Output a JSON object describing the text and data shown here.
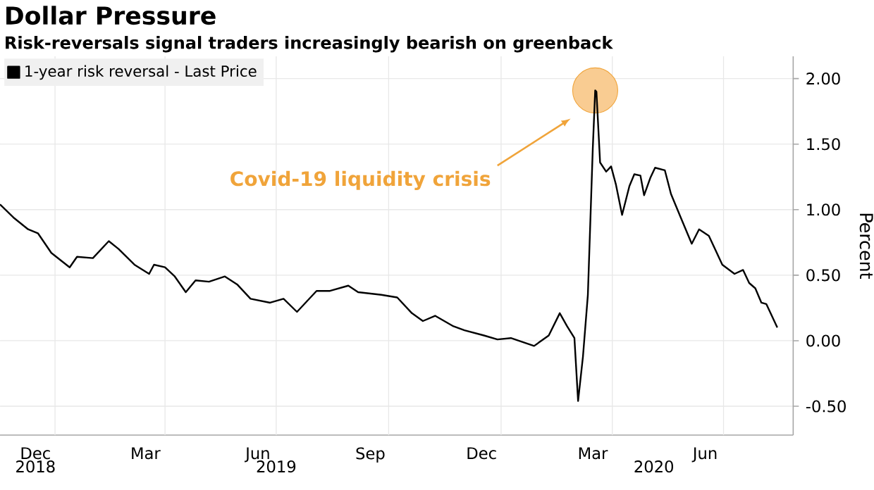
{
  "chart_data": {
    "type": "line",
    "title": "Dollar Pressure",
    "subtitle": "Risk-reversals signal traders increasingly bearish on greenback",
    "ylabel": "Percent",
    "series": [
      {
        "name": "1-year risk reversal - Last Price",
        "color": "#000000",
        "x": [
          "2018-11-17",
          "2018-11-28",
          "2018-12-10",
          "2018-12-18",
          "2018-12-29",
          "2019-01-13",
          "2019-01-19",
          "2019-02-01",
          "2019-02-14",
          "2019-02-22",
          "2019-03-07",
          "2019-03-19",
          "2019-03-23",
          "2019-04-01",
          "2019-04-09",
          "2019-04-18",
          "2019-04-26",
          "2019-05-07",
          "2019-05-20",
          "2019-05-30",
          "2019-06-10",
          "2019-06-26",
          "2019-07-07",
          "2019-07-18",
          "2019-08-03",
          "2019-08-14",
          "2019-08-29",
          "2019-09-06",
          "2019-09-25",
          "2019-10-08",
          "2019-10-20",
          "2019-10-29",
          "2019-11-08",
          "2019-11-23",
          "2019-12-02",
          "2019-12-18",
          "2019-12-29",
          "2020-01-09",
          "2020-01-28",
          "2020-02-09",
          "2020-02-18",
          "2020-02-24",
          "2020-03-01",
          "2020-03-04",
          "2020-03-08",
          "2020-03-12",
          "2020-03-16",
          "2020-03-18",
          "2020-03-19",
          "2020-03-22",
          "2020-03-27",
          "2020-03-31",
          "2020-04-04",
          "2020-04-09",
          "2020-04-15",
          "2020-04-19",
          "2020-04-24",
          "2020-04-27",
          "2020-05-02",
          "2020-05-06",
          "2020-05-14",
          "2020-05-19",
          "2020-05-27",
          "2020-06-05",
          "2020-06-11",
          "2020-06-19",
          "2020-06-30",
          "2020-07-10",
          "2020-07-17",
          "2020-07-22",
          "2020-07-27",
          "2020-08-01",
          "2020-08-05",
          "2020-08-14"
        ],
        "values": [
          1.04,
          0.94,
          0.85,
          0.82,
          0.67,
          0.56,
          0.64,
          0.63,
          0.76,
          0.7,
          0.58,
          0.51,
          0.58,
          0.56,
          0.49,
          0.37,
          0.46,
          0.45,
          0.49,
          0.43,
          0.32,
          0.29,
          0.32,
          0.22,
          0.38,
          0.38,
          0.42,
          0.37,
          0.35,
          0.33,
          0.21,
          0.15,
          0.19,
          0.11,
          0.08,
          0.04,
          0.01,
          0.02,
          -0.04,
          0.04,
          0.21,
          0.11,
          0.02,
          -0.46,
          -0.12,
          0.35,
          1.46,
          1.91,
          1.9,
          1.36,
          1.29,
          1.33,
          1.19,
          0.96,
          1.18,
          1.27,
          1.26,
          1.11,
          1.24,
          1.32,
          1.3,
          1.12,
          0.94,
          0.74,
          0.85,
          0.8,
          0.58,
          0.51,
          0.54,
          0.44,
          0.4,
          0.29,
          0.28,
          0.1
        ]
      }
    ],
    "xlim": [
      "2018-11-17",
      "2020-08-27"
    ],
    "xticks": [
      {
        "value": "2018-12-16",
        "label": "Dec"
      },
      {
        "value": "2019-03-16",
        "label": "Mar"
      },
      {
        "value": "2019-06-16",
        "label": "Jun"
      },
      {
        "value": "2019-09-16",
        "label": "Sep"
      },
      {
        "value": "2019-12-16",
        "label": "Dec"
      },
      {
        "value": "2020-03-16",
        "label": "Mar"
      },
      {
        "value": "2020-06-16",
        "label": "Jun"
      },
      {
        "value": "2019-01-01",
        "label": null
      },
      {
        "value": "2019-04-01",
        "label": null
      },
      {
        "value": "2019-07-01",
        "label": null
      },
      {
        "value": "2019-10-01",
        "label": null
      },
      {
        "value": "2020-01-01",
        "label": null
      },
      {
        "value": "2020-04-01",
        "label": null
      },
      {
        "value": "2020-07-01",
        "label": null
      }
    ],
    "x2lim": [
      "2018-11-17",
      "2020-08-27"
    ],
    "x2ticks": [
      {
        "value": "2018-12-16",
        "label": "2018"
      },
      {
        "value": "2019-07-01",
        "label": "2019"
      },
      {
        "value": "2020-05-05",
        "label": "2020"
      },
      {
        "value": "2019-01-01",
        "label": null
      },
      {
        "value": "2020-01-01",
        "label": null
      }
    ],
    "ylim": [
      -0.72,
      2.17
    ],
    "yticks": [
      {
        "value": -0.5,
        "label": "-0.50"
      },
      {
        "value": 0,
        "label": "0.00"
      },
      {
        "value": 0.5,
        "label": "0.50"
      },
      {
        "value": 1,
        "label": "1.00"
      },
      {
        "value": 1.5,
        "label": "1.50"
      },
      {
        "value": 2,
        "label": "2.00"
      }
    ],
    "grid": true,
    "legend": "top left",
    "annotations": [
      "Covid-19 liquidity crisis"
    ]
  }
}
